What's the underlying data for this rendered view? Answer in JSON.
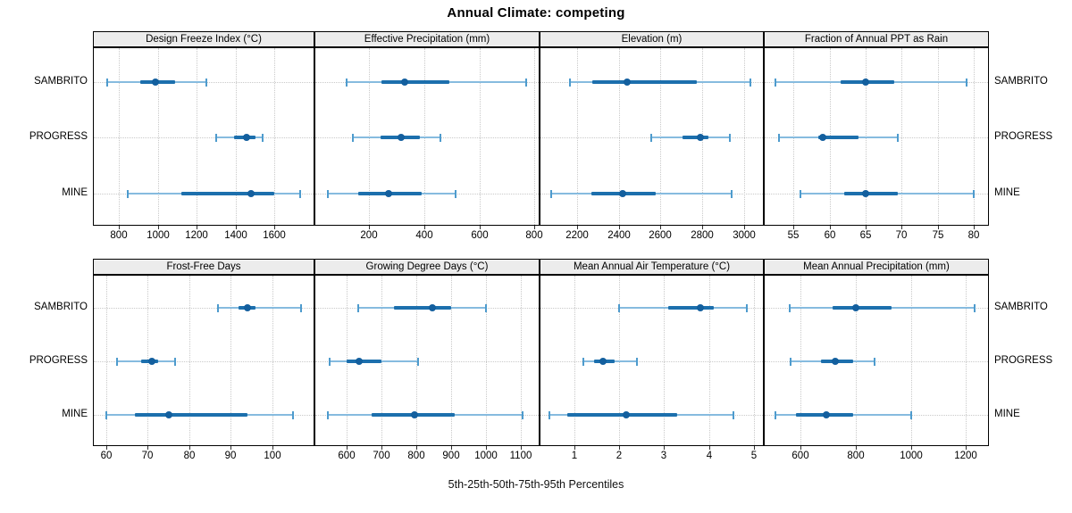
{
  "title": "Annual Climate: competing",
  "caption": "5th-25th-50th-75th-95th Percentiles",
  "categories": [
    "SAMBRITO",
    "PROGRESS",
    "MINE"
  ],
  "percentile_labels": [
    "5th",
    "25th",
    "50th",
    "75th",
    "95th"
  ],
  "colors": {
    "whisker_line": "#86bbdf",
    "whisker_cap": "#4e9bcd",
    "iqr_bar": "#1c6fad",
    "median_dot": "#135f9e",
    "gridline": "#c9c9c9",
    "strip_bg": "#ececec",
    "panel_border": "#000000"
  },
  "chart_data": {
    "type": "percentile-dotplot",
    "layout": "2 rows x 4 columns of panels",
    "rows_top_to_bottom": [
      "SAMBRITO",
      "PROGRESS",
      "MINE"
    ],
    "percentiles_order": [
      5,
      25,
      50,
      75,
      95
    ],
    "panels": [
      {
        "title": "Design Freeze Index (°C)",
        "grid_row": "top",
        "ticks": [
          800,
          1000,
          1200,
          1400,
          1600
        ],
        "xlim": [
          670,
          1800
        ],
        "series": [
          {
            "name": "SAMBRITO",
            "percentiles": [
              740,
              910,
              985,
              1090,
              1250
            ]
          },
          {
            "name": "PROGRESS",
            "percentiles": [
              1300,
              1390,
              1455,
              1500,
              1540
            ]
          },
          {
            "name": "MINE",
            "percentiles": [
              845,
              1120,
              1480,
              1600,
              1730
            ]
          }
        ]
      },
      {
        "title": "Effective Precipitation (mm)",
        "grid_row": "top",
        "ticks": [
          200,
          400,
          600,
          800
        ],
        "xlim": [
          5,
          815
        ],
        "series": [
          {
            "name": "SAMBRITO",
            "percentiles": [
              120,
              245,
              330,
              490,
              770
            ]
          },
          {
            "name": "PROGRESS",
            "percentiles": [
              140,
              240,
              315,
              385,
              460
            ]
          },
          {
            "name": "MINE",
            "percentiles": [
              50,
              160,
              270,
              390,
              515
            ]
          }
        ]
      },
      {
        "title": "Elevation (m)",
        "grid_row": "top",
        "ticks": [
          2200,
          2400,
          2600,
          2800,
          3000
        ],
        "xlim": [
          2025,
          3090
        ],
        "series": [
          {
            "name": "SAMBRITO",
            "percentiles": [
              2165,
              2275,
              2440,
              2775,
              3030
            ]
          },
          {
            "name": "PROGRESS",
            "percentiles": [
              2555,
              2705,
              2790,
              2830,
              2930
            ]
          },
          {
            "name": "MINE",
            "percentiles": [
              2075,
              2270,
              2420,
              2575,
              2940
            ]
          }
        ]
      },
      {
        "title": "Fraction of Annual PPT as Rain",
        "grid_row": "top",
        "ticks": [
          55,
          60,
          65,
          70,
          75,
          80
        ],
        "xlim": [
          51,
          82
        ],
        "series": [
          {
            "name": "SAMBRITO",
            "percentiles": [
              52.5,
              61.5,
              65,
              69,
              79
            ]
          },
          {
            "name": "PROGRESS",
            "percentiles": [
              53,
              58.5,
              59,
              64,
              69.5
            ]
          },
          {
            "name": "MINE",
            "percentiles": [
              56,
              62,
              65,
              69.5,
              80
            ]
          }
        ]
      },
      {
        "title": "Frost-Free Days",
        "grid_row": "bottom",
        "ticks": [
          60,
          70,
          80,
          90,
          100
        ],
        "xlim": [
          57,
          110
        ],
        "series": [
          {
            "name": "SAMBRITO",
            "percentiles": [
              87,
              92,
              94,
              96,
              107
            ]
          },
          {
            "name": "PROGRESS",
            "percentiles": [
              62.5,
              68.5,
              71,
              72.5,
              76.5
            ]
          },
          {
            "name": "MINE",
            "percentiles": [
              60,
              67,
              75,
              94,
              105
            ]
          }
        ]
      },
      {
        "title": "Growing Degree Days (°C)",
        "grid_row": "bottom",
        "ticks": [
          600,
          700,
          800,
          900,
          1000,
          1100
        ],
        "xlim": [
          510,
          1150
        ],
        "series": [
          {
            "name": "SAMBRITO",
            "percentiles": [
              633,
              735,
              845,
              900,
              1000
            ]
          },
          {
            "name": "PROGRESS",
            "percentiles": [
              550,
              600,
              635,
              700,
              805
            ]
          },
          {
            "name": "MINE",
            "percentiles": [
              545,
              670,
              795,
              910,
              1105
            ]
          }
        ]
      },
      {
        "title": "Mean Annual Air Temperature (°C)",
        "grid_row": "bottom",
        "ticks": [
          1,
          2,
          3,
          4,
          5
        ],
        "xlim": [
          0.25,
          5.2
        ],
        "series": [
          {
            "name": "SAMBRITO",
            "percentiles": [
              2.0,
              3.1,
              3.8,
              4.1,
              4.85
            ]
          },
          {
            "name": "PROGRESS",
            "percentiles": [
              1.2,
              1.45,
              1.65,
              1.9,
              2.4
            ]
          },
          {
            "name": "MINE",
            "percentiles": [
              0.45,
              0.85,
              2.15,
              3.3,
              4.55
            ]
          }
        ]
      },
      {
        "title": "Mean Annual Precipitation (mm)",
        "grid_row": "bottom",
        "ticks": [
          600,
          800,
          1000,
          1200
        ],
        "xlim": [
          470,
          1280
        ],
        "series": [
          {
            "name": "SAMBRITO",
            "percentiles": [
              560,
              715,
              800,
              930,
              1230
            ]
          },
          {
            "name": "PROGRESS",
            "percentiles": [
              565,
              675,
              725,
              790,
              870
            ]
          },
          {
            "name": "MINE",
            "percentiles": [
              510,
              585,
              695,
              790,
              1000
            ]
          }
        ]
      }
    ]
  }
}
